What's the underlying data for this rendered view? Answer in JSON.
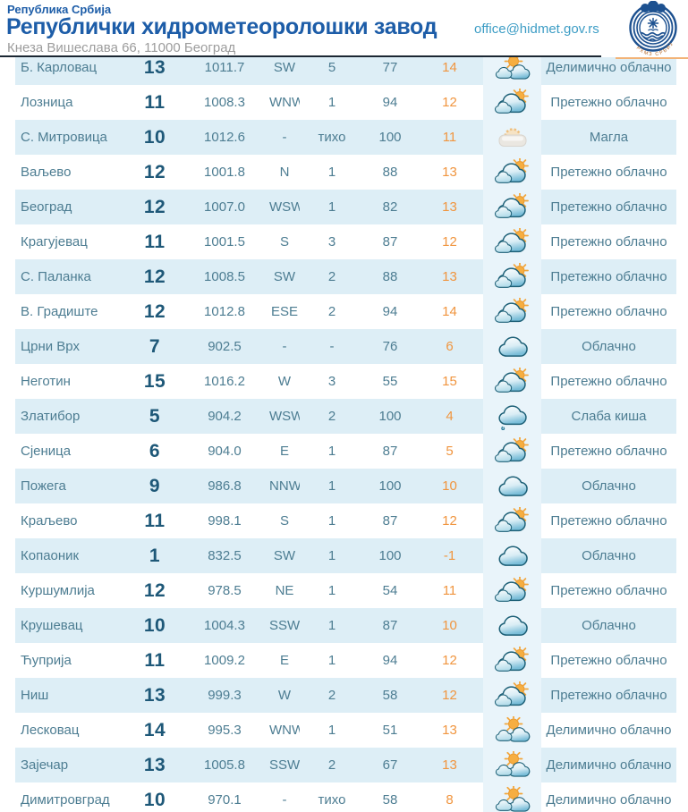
{
  "header": {
    "country_label": "Република Србија",
    "org_title": "Републички хидрометеоролошки завод",
    "address": "Кнеза Вишеслава 66, 11000 Београд",
    "email": "office@hidmet.gov.rs",
    "logo_caption": "РХМЗ СРБИЈЕ"
  },
  "colors": {
    "brand_blue": "#1d5da8",
    "email_blue": "#3d9dc5",
    "address_gray": "#9c9c9c",
    "divider_dark": "#1b2733",
    "stripe_blue": "#ddeef6",
    "icon_cell_bg": "#e9f4fa",
    "table_text_teal": "#4d7d92",
    "temp_navy": "#1e5878",
    "feels_like_orange": "#f0953f",
    "logo_blue": "#1d5190",
    "logo_caption_orange": "#b86a28",
    "header_accent_orange": "#f2b377"
  },
  "table": {
    "rows": [
      {
        "station": "Б. Карловац",
        "temperature": "13",
        "pressure": "1011.7",
        "wind_direction": "SW",
        "wind_speed": "5",
        "humidity": "77",
        "feels_like": "14",
        "icon": "partly-cloudy",
        "description": "Делимично облачно"
      },
      {
        "station": "Лозница",
        "temperature": "11",
        "pressure": "1008.3",
        "wind_direction": "WNW",
        "wind_speed": "1",
        "humidity": "94",
        "feels_like": "12",
        "icon": "mostly-cloudy",
        "description": "Претежно облачно"
      },
      {
        "station": "С. Митровица",
        "temperature": "10",
        "pressure": "1012.6",
        "wind_direction": "-",
        "wind_speed": "тихо",
        "humidity": "100",
        "feels_like": "11",
        "icon": "fog",
        "description": "Магла"
      },
      {
        "station": "Ваљево",
        "temperature": "12",
        "pressure": "1001.8",
        "wind_direction": "N",
        "wind_speed": "1",
        "humidity": "88",
        "feels_like": "13",
        "icon": "mostly-cloudy",
        "description": "Претежно облачно"
      },
      {
        "station": "Београд",
        "temperature": "12",
        "pressure": "1007.0",
        "wind_direction": "WSW",
        "wind_speed": "1",
        "humidity": "82",
        "feels_like": "13",
        "icon": "mostly-cloudy",
        "description": "Претежно облачно"
      },
      {
        "station": "Крагујевац",
        "temperature": "11",
        "pressure": "1001.5",
        "wind_direction": "S",
        "wind_speed": "3",
        "humidity": "87",
        "feels_like": "12",
        "icon": "mostly-cloudy",
        "description": "Претежно облачно"
      },
      {
        "station": "С. Паланка",
        "temperature": "12",
        "pressure": "1008.5",
        "wind_direction": "SW",
        "wind_speed": "2",
        "humidity": "88",
        "feels_like": "13",
        "icon": "mostly-cloudy",
        "description": "Претежно облачно"
      },
      {
        "station": "В. Градиште",
        "temperature": "12",
        "pressure": "1012.8",
        "wind_direction": "ESE",
        "wind_speed": "2",
        "humidity": "94",
        "feels_like": "14",
        "icon": "mostly-cloudy",
        "description": "Претежно облачно"
      },
      {
        "station": "Црни Врх",
        "temperature": "7",
        "pressure": "902.5",
        "wind_direction": "-",
        "wind_speed": "-",
        "humidity": "76",
        "feels_like": "6",
        "icon": "cloudy",
        "description": "Облачно"
      },
      {
        "station": "Неготин",
        "temperature": "15",
        "pressure": "1016.2",
        "wind_direction": "W",
        "wind_speed": "3",
        "humidity": "55",
        "feels_like": "15",
        "icon": "mostly-cloudy",
        "description": "Претежно облачно"
      },
      {
        "station": "Златибор",
        "temperature": "5",
        "pressure": "904.2",
        "wind_direction": "WSW",
        "wind_speed": "2",
        "humidity": "100",
        "feels_like": "4",
        "icon": "light-rain",
        "description": "Слаба киша"
      },
      {
        "station": "Сјеница",
        "temperature": "6",
        "pressure": "904.0",
        "wind_direction": "E",
        "wind_speed": "1",
        "humidity": "87",
        "feels_like": "5",
        "icon": "mostly-cloudy",
        "description": "Претежно облачно"
      },
      {
        "station": "Пожега",
        "temperature": "9",
        "pressure": "986.8",
        "wind_direction": "NNW",
        "wind_speed": "1",
        "humidity": "100",
        "feels_like": "10",
        "icon": "cloudy",
        "description": "Облачно"
      },
      {
        "station": "Краљево",
        "temperature": "11",
        "pressure": "998.1",
        "wind_direction": "S",
        "wind_speed": "1",
        "humidity": "87",
        "feels_like": "12",
        "icon": "mostly-cloudy",
        "description": "Претежно облачно"
      },
      {
        "station": "Копаоник",
        "temperature": "1",
        "pressure": "832.5",
        "wind_direction": "SW",
        "wind_speed": "1",
        "humidity": "100",
        "feels_like": "-1",
        "icon": "cloudy",
        "description": "Облачно"
      },
      {
        "station": "Куршумлија",
        "temperature": "12",
        "pressure": "978.5",
        "wind_direction": "NE",
        "wind_speed": "1",
        "humidity": "54",
        "feels_like": "11",
        "icon": "mostly-cloudy",
        "description": "Претежно облачно"
      },
      {
        "station": "Крушевац",
        "temperature": "10",
        "pressure": "1004.3",
        "wind_direction": "SSW",
        "wind_speed": "1",
        "humidity": "87",
        "feels_like": "10",
        "icon": "cloudy",
        "description": "Облачно"
      },
      {
        "station": "Ћуприја",
        "temperature": "11",
        "pressure": "1009.2",
        "wind_direction": "E",
        "wind_speed": "1",
        "humidity": "94",
        "feels_like": "12",
        "icon": "mostly-cloudy",
        "description": "Претежно облачно"
      },
      {
        "station": "Ниш",
        "temperature": "13",
        "pressure": "999.3",
        "wind_direction": "W",
        "wind_speed": "2",
        "humidity": "58",
        "feels_like": "12",
        "icon": "mostly-cloudy",
        "description": "Претежно облачно"
      },
      {
        "station": "Лесковац",
        "temperature": "14",
        "pressure": "995.3",
        "wind_direction": "WNW",
        "wind_speed": "1",
        "humidity": "51",
        "feels_like": "13",
        "icon": "partly-cloudy",
        "description": "Делимично облачно"
      },
      {
        "station": "Зајечар",
        "temperature": "13",
        "pressure": "1005.8",
        "wind_direction": "SSW",
        "wind_speed": "2",
        "humidity": "67",
        "feels_like": "13",
        "icon": "partly-cloudy",
        "description": "Делимично облачно"
      },
      {
        "station": "Димитровград",
        "temperature": "10",
        "pressure": "970.1",
        "wind_direction": "-",
        "wind_speed": "тихо",
        "humidity": "58",
        "feels_like": "8",
        "icon": "partly-cloudy",
        "description": "Делимично облачно"
      }
    ]
  }
}
